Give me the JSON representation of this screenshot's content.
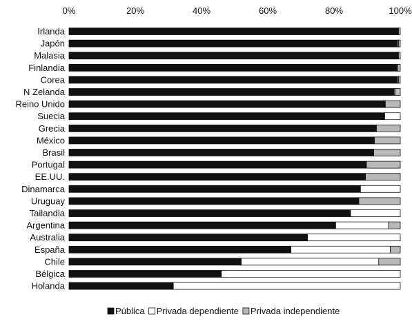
{
  "chart_data": {
    "type": "bar",
    "orientation": "horizontal",
    "stacked": true,
    "x_ticks": [
      "0%",
      "20%",
      "40%",
      "60%",
      "80%",
      "100%"
    ],
    "xlim": [
      0,
      100
    ],
    "grid": false,
    "legend_position": "bottom",
    "categories": [
      "Irlanda",
      "Japón",
      "Malasia",
      "Finlandia",
      "Corea",
      "N Zelanda",
      "Reino Unido",
      "Suecia",
      "Grecia",
      "México",
      "Brasil",
      "Portugal",
      "EE.UU.",
      "Dinamarca",
      "Uruguay",
      "Tailandia",
      "Argentina",
      "Australia",
      "España",
      "Chile",
      "Bélgica",
      "Holanda"
    ],
    "series": [
      {
        "name": "Pública",
        "color": "#111111",
        "values": [
          99.3,
          99.2,
          99.3,
          99.0,
          99.2,
          98.2,
          95.5,
          95.3,
          92.8,
          92.2,
          92.0,
          89.8,
          89.5,
          88.0,
          87.5,
          85.0,
          80.5,
          72.0,
          67.0,
          52.0,
          46.0,
          31.5
        ]
      },
      {
        "name": "Privada dependiente",
        "color": "#ffffff",
        "values": [
          0.2,
          0.3,
          0.2,
          0.2,
          0.3,
          0.3,
          0.0,
          4.7,
          0.0,
          0.0,
          0.0,
          0.0,
          0.0,
          12.0,
          0.0,
          15.0,
          16.0,
          28.0,
          30.0,
          41.5,
          54.0,
          68.5
        ]
      },
      {
        "name": "Privada independiente",
        "color": "#b9b9b9",
        "values": [
          0.5,
          0.5,
          0.5,
          0.8,
          0.5,
          1.5,
          4.5,
          0.0,
          7.2,
          7.8,
          8.0,
          10.2,
          10.5,
          0.0,
          12.5,
          0.0,
          3.5,
          0.0,
          3.0,
          6.5,
          0.0,
          0.0
        ]
      }
    ]
  }
}
